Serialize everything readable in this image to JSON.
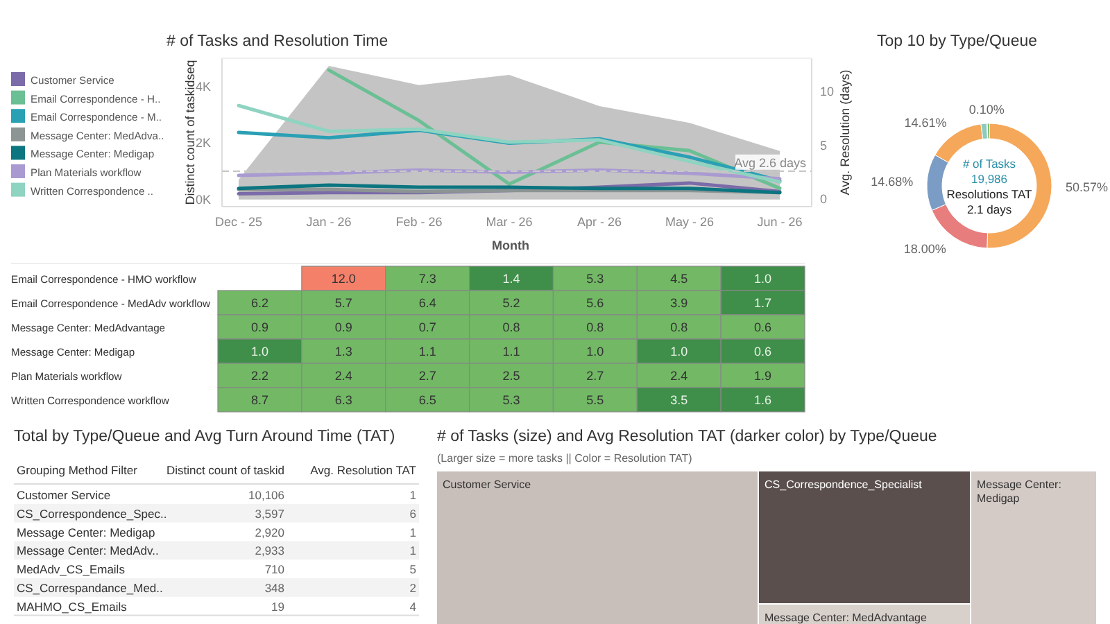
{
  "chart_data": [
    {
      "type": "line",
      "title": "# of Tasks and Resolution Time",
      "xlabel": "Month",
      "ylabel": "Distinct count of taskidseq",
      "y2label": "Avg. Resolution (days)",
      "categories": [
        "Dec - 25",
        "Jan - 26",
        "Feb - 26",
        "Mar - 26",
        "Apr - 26",
        "May - 26",
        "Jun - 26"
      ],
      "ylim": [
        -250,
        5000
      ],
      "yticks": [
        {
          "value": 0,
          "label": "0K"
        },
        {
          "value": 2000,
          "label": "2K"
        },
        {
          "value": 4000,
          "label": "4K"
        }
      ],
      "y2lim": [
        -0.7,
        13.1
      ],
      "y2ticks": [
        0,
        5,
        10
      ],
      "legend": "left",
      "ref_lines": [
        {
          "axis": "y2",
          "value": 2.6,
          "label": "Avg 2.6 days",
          "line_style": "dashed",
          "color": "#c8c8c8"
        }
      ],
      "series": [
        {
          "type": "area",
          "axis": "y",
          "color": "#c4c4c4",
          "values": [
            700,
            4730,
            4050,
            4410,
            3310,
            2710,
            1720
          ]
        },
        {
          "name": "Customer Service",
          "axis": "y2",
          "color": "#7b6ba8",
          "values": [
            0.5,
            0.6,
            0.6,
            0.8,
            1.1,
            1.5,
            0.7
          ]
        },
        {
          "name": "Email Correspondence - H..",
          "axis": "y2",
          "color": "#6bbf94",
          "values": [
            null,
            12.0,
            7.3,
            1.4,
            5.3,
            4.5,
            1.0
          ]
        },
        {
          "name": "Email Correspondence - M..",
          "axis": "y2",
          "color": "#2aa0b5",
          "values": [
            6.2,
            5.7,
            6.4,
            5.2,
            5.6,
            3.9,
            1.7
          ]
        },
        {
          "name": "Message Center: MedAdva..",
          "axis": "y2",
          "color": "#8c9494",
          "values": [
            0.9,
            0.9,
            0.7,
            0.8,
            0.8,
            0.8,
            0.6
          ]
        },
        {
          "name": "Message Center: Medigap",
          "axis": "y2",
          "color": "#0b7580",
          "values": [
            1.0,
            1.3,
            1.1,
            1.1,
            1.0,
            1.0,
            0.6
          ]
        },
        {
          "name": "Plan Materials workflow",
          "axis": "y2",
          "color": "#a99bd1",
          "values": [
            2.2,
            2.4,
            2.7,
            2.5,
            2.7,
            2.4,
            1.9
          ]
        },
        {
          "name": "Written Correspondence ..",
          "axis": "y2",
          "color": "#8fd3c1",
          "values": [
            8.7,
            6.3,
            6.5,
            5.3,
            5.5,
            3.5,
            1.6
          ]
        }
      ]
    },
    {
      "type": "donut",
      "title": "Top 10 by Type/Queue",
      "categories": [
        null,
        null,
        null,
        null,
        null,
        null,
        null
      ],
      "values": [
        50.57,
        18.0,
        14.68,
        14.61,
        1.54,
        0.1,
        0.5
      ],
      "value_labels": [
        "50.57%",
        "18.00%",
        "14.68%",
        "14.61%",
        null,
        "0.10%",
        null
      ],
      "colors": [
        "#f5a85a",
        "#e87d7d",
        "#7b9cc4",
        "#f5a85a",
        "#8ccbbf",
        "#c8b05a",
        "#6aab5a"
      ],
      "annotations": [
        "# of Tasks",
        "19,986",
        "Resolutions TAT",
        "2.1 days"
      ]
    },
    {
      "type": "heatmap",
      "categories": [
        null,
        null,
        null,
        null,
        null,
        null,
        null
      ],
      "y_categories": [
        "Email Correspondence - HMO workflow",
        "Email Correspondence - MedAdv workflow",
        "Message Center: MedAdvantage",
        "Message Center: Medigap",
        "Plan Materials workflow",
        "Written Correspondence workflow"
      ],
      "data_labels": true,
      "cells": [
        [
          null,
          12.0,
          7.3,
          1.4,
          5.3,
          4.5,
          1.0
        ],
        [
          6.2,
          5.7,
          6.4,
          5.2,
          5.6,
          3.9,
          1.7
        ],
        [
          0.9,
          0.9,
          0.7,
          0.8,
          0.8,
          0.8,
          0.6
        ],
        [
          1.0,
          1.3,
          1.1,
          1.1,
          1.0,
          1.0,
          0.6
        ],
        [
          2.2,
          2.4,
          2.7,
          2.5,
          2.7,
          2.4,
          1.9
        ],
        [
          8.7,
          6.3,
          6.5,
          5.3,
          5.5,
          3.5,
          1.6
        ]
      ],
      "cell_labels": [
        [
          null,
          "12.0",
          "7.3",
          "1.4",
          "5.3",
          "4.5",
          "1.0"
        ],
        [
          "6.2",
          "5.7",
          "6.4",
          "5.2",
          "5.6",
          "3.9",
          "1.7"
        ],
        [
          "0.9",
          "0.9",
          "0.7",
          "0.8",
          "0.8",
          "0.8",
          "0.6"
        ],
        [
          "1.0",
          "1.3",
          "1.1",
          "1.1",
          "1.0",
          "1.0",
          "0.6"
        ],
        [
          "2.2",
          "2.4",
          "2.7",
          "2.5",
          "2.7",
          "2.4",
          "1.9"
        ],
        [
          "8.7",
          "6.3",
          "6.5",
          "5.3",
          "5.5",
          "3.5",
          "1.6"
        ]
      ],
      "colors": [
        [
          null,
          "#f4806a",
          "#72b865",
          "#3f8f4a",
          "#72b865",
          "#72b865",
          "#3f8f4a"
        ],
        [
          "#72b865",
          "#72b865",
          "#72b865",
          "#72b865",
          "#72b865",
          "#72b865",
          "#3f8f4a"
        ],
        [
          "#72b865",
          "#72b865",
          "#72b865",
          "#72b865",
          "#72b865",
          "#72b865",
          "#72b865"
        ],
        [
          "#3f8f4a",
          "#72b865",
          "#72b865",
          "#72b865",
          "#72b865",
          "#3f8f4a",
          "#3f8f4a"
        ],
        [
          "#72b865",
          "#72b865",
          "#72b865",
          "#72b865",
          "#72b865",
          "#72b865",
          "#72b865"
        ],
        [
          "#72b865",
          "#72b865",
          "#72b865",
          "#72b865",
          "#72b865",
          "#3f8f4a",
          "#3f8f4a"
        ]
      ]
    },
    {
      "type": "other",
      "title": "Total by Type/Queue and Avg Turn Around Time (TAT)",
      "xlabel": "Grouping Method Filter",
      "data_labels": true,
      "categories": [
        "Customer Service",
        "CS_Correspondence_Spec..",
        "Message Center: Medigap",
        "Message Center: MedAdv..",
        "MedAdv_CS_Emails",
        "CS_Correspandance_Med..",
        "MAHMO_CS_Emails"
      ],
      "series": [
        {
          "name": "Distinct count of taskid",
          "values": [
            10106,
            3597,
            2920,
            2933,
            710,
            348,
            19
          ],
          "value_labels": [
            "10,106",
            "3,597",
            "2,920",
            "2,933",
            "710",
            "348",
            "19"
          ]
        },
        {
          "name": "Avg. Resolution TAT",
          "values": [
            1,
            6,
            1,
            1,
            5,
            2,
            4
          ]
        }
      ]
    },
    {
      "type": "other",
      "title": "# of Tasks (size) and Avg Resolution TAT (darker color) by Type/Queue",
      "subtitle": "(Larger size = more tasks  ||   Color = Resolution TAT)",
      "categories": [
        "Customer Service",
        "CS_Correspondence_Specialist",
        "Message Center: Medigap",
        "Message Center: MedAdvantage"
      ],
      "colors": [
        "#c9bfba",
        "#5a4f4d",
        "#d4cbc6",
        "#d8d0cb"
      ]
    }
  ]
}
